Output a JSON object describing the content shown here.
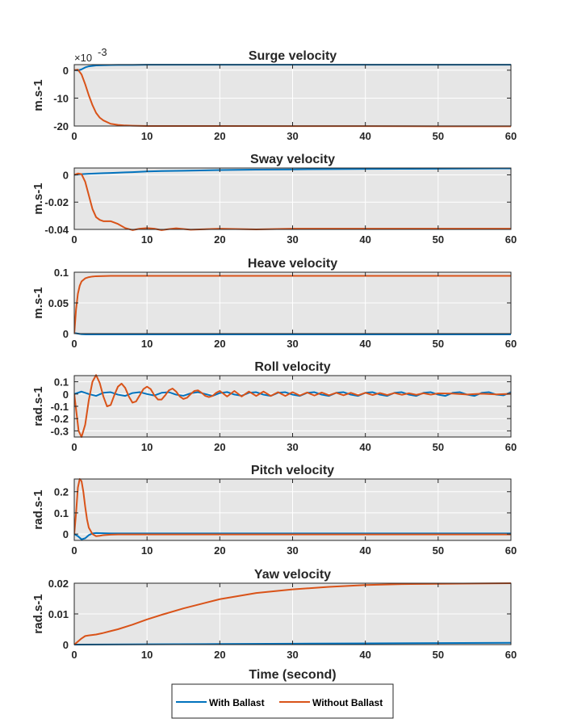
{
  "chart_data": [
    {
      "type": "line",
      "title": "Surge velocity",
      "ylabel": "m.s-1",
      "xlabel": "",
      "xlim": [
        0,
        60
      ],
      "ylim": [
        -20,
        2
      ],
      "xticks": [
        0,
        10,
        20,
        30,
        40,
        50,
        60
      ],
      "xtick_labels": [
        "0",
        "10",
        "20",
        "30",
        "40",
        "50",
        "60"
      ],
      "yticks": [
        -20,
        -10,
        0
      ],
      "ytick_labels": [
        "-20",
        "-10",
        "0"
      ],
      "exponent_label": "×10",
      "exponent_power": "-3",
      "grid": true,
      "series": [
        {
          "name": "With Ballast",
          "color": "#0072BD",
          "x": [
            0,
            0.5,
            1,
            1.5,
            2,
            3,
            4,
            5,
            6,
            8,
            10,
            20,
            30,
            40,
            50,
            60
          ],
          "y": [
            0,
            -0.1,
            0.3,
            1.0,
            1.4,
            1.7,
            1.8,
            1.85,
            1.9,
            1.9,
            1.95,
            1.95,
            1.95,
            1.95,
            1.95,
            1.95
          ]
        },
        {
          "name": "Without Ballast",
          "color": "#D95319",
          "x": [
            0,
            0.5,
            1,
            1.5,
            2,
            2.5,
            3,
            3.5,
            4,
            5,
            6,
            7,
            8,
            10,
            15,
            20,
            30,
            40,
            50,
            60
          ],
          "y": [
            0,
            0.2,
            -1.5,
            -5,
            -9,
            -12.5,
            -15.3,
            -17,
            -18,
            -19.2,
            -19.6,
            -19.8,
            -19.9,
            -20,
            -20,
            -20,
            -20.05,
            -20.05,
            -20.1,
            -20.1
          ]
        }
      ]
    },
    {
      "type": "line",
      "title": "Sway velocity",
      "ylabel": "m.s-1",
      "xlabel": "",
      "xlim": [
        0,
        60
      ],
      "ylim": [
        -0.04,
        0.005
      ],
      "xticks": [
        0,
        10,
        20,
        30,
        40,
        50,
        60
      ],
      "xtick_labels": [
        "0",
        "10",
        "20",
        "30",
        "40",
        "50",
        "60"
      ],
      "yticks": [
        -0.04,
        -0.02,
        0
      ],
      "ytick_labels": [
        "-0.04",
        "-0.02",
        "0"
      ],
      "grid": true,
      "series": [
        {
          "name": "With Ballast",
          "color": "#0072BD",
          "x": [
            0,
            1,
            2,
            3,
            4,
            5,
            6,
            7,
            8,
            10,
            12,
            15,
            20,
            25,
            30,
            35,
            40,
            45,
            50,
            55,
            58,
            60
          ],
          "y": [
            0,
            0.0005,
            0.0008,
            0.001,
            0.0012,
            0.0014,
            0.0016,
            0.0018,
            0.002,
            0.0025,
            0.0028,
            0.003,
            0.0035,
            0.0038,
            0.004,
            0.0042,
            0.0043,
            0.0044,
            0.0045,
            0.0046,
            0.0047,
            0.0047
          ]
        },
        {
          "name": "Without Ballast",
          "color": "#D95319",
          "x": [
            0,
            0.5,
            1,
            1.5,
            2,
            2.5,
            3,
            3.5,
            4,
            5,
            6,
            7,
            8,
            9,
            10,
            11,
            12,
            13,
            14,
            16,
            20,
            25,
            30,
            40,
            50,
            60
          ],
          "y": [
            0,
            0.001,
            0.0005,
            -0.005,
            -0.015,
            -0.025,
            -0.031,
            -0.033,
            -0.034,
            -0.034,
            -0.036,
            -0.039,
            -0.0405,
            -0.0395,
            -0.039,
            -0.0395,
            -0.0405,
            -0.0398,
            -0.0392,
            -0.0402,
            -0.0395,
            -0.04,
            -0.0395,
            -0.0395,
            -0.0395,
            -0.0395
          ]
        }
      ]
    },
    {
      "type": "line",
      "title": "Heave velocity",
      "ylabel": "m.s-1",
      "xlabel": "",
      "xlim": [
        0,
        60
      ],
      "ylim": [
        0,
        0.1
      ],
      "xticks": [
        0,
        10,
        20,
        30,
        40,
        50,
        60
      ],
      "xtick_labels": [
        "0",
        "10",
        "20",
        "30",
        "40",
        "50",
        "60"
      ],
      "yticks": [
        0,
        0.05,
        0.1
      ],
      "ytick_labels": [
        "0",
        "0.05",
        "0.1"
      ],
      "grid": true,
      "series": [
        {
          "name": "With Ballast",
          "color": "#0072BD",
          "x": [
            0,
            1,
            2,
            3,
            5,
            10,
            20,
            30,
            40,
            50,
            60
          ],
          "y": [
            0.001,
            -0.001,
            -0.0015,
            -0.0015,
            -0.0015,
            -0.0015,
            -0.0015,
            -0.0015,
            -0.0015,
            -0.0015,
            -0.0015
          ]
        },
        {
          "name": "Without Ballast",
          "color": "#D95319",
          "x": [
            0,
            0.25,
            0.5,
            0.75,
            1,
            1.5,
            2,
            2.5,
            3,
            4,
            5,
            7,
            10,
            20,
            30,
            40,
            50,
            60
          ],
          "y": [
            0,
            0.04,
            0.065,
            0.078,
            0.085,
            0.09,
            0.092,
            0.093,
            0.0935,
            0.0938,
            0.094,
            0.094,
            0.094,
            0.094,
            0.094,
            0.094,
            0.094,
            0.094
          ]
        }
      ]
    },
    {
      "type": "line",
      "title": "Roll velocity",
      "ylabel": "rad.s-1",
      "xlabel": "",
      "xlim": [
        0,
        60
      ],
      "ylim": [
        -0.35,
        0.15
      ],
      "xticks": [
        0,
        10,
        20,
        30,
        40,
        50,
        60
      ],
      "xtick_labels": [
        "0",
        "10",
        "20",
        "30",
        "40",
        "50",
        "60"
      ],
      "yticks": [
        -0.3,
        -0.2,
        -0.1,
        0,
        0.1
      ],
      "ytick_labels": [
        "-0.3",
        "-0.2",
        "-0.1",
        "0",
        "0.1"
      ],
      "grid": true,
      "series": [
        {
          "name": "With Ballast",
          "color": "#0072BD",
          "x": [
            0,
            1,
            2,
            3,
            4,
            5,
            6,
            7,
            8,
            9,
            10,
            11,
            12,
            13,
            14,
            15,
            16,
            17,
            18,
            19,
            20,
            21,
            22,
            23,
            24,
            25,
            26,
            27,
            28,
            29,
            30,
            31,
            32,
            33,
            34,
            35,
            36,
            37,
            38,
            39,
            40,
            41,
            42,
            43,
            44,
            45,
            46,
            47,
            48,
            49,
            50,
            51,
            52,
            53,
            54,
            55,
            56,
            57,
            58,
            59,
            60
          ],
          "y": [
            0,
            0.02,
            0,
            -0.015,
            0.01,
            0.015,
            -0.005,
            -0.015,
            0.008,
            0.015,
            0,
            -0.012,
            0.01,
            0.015,
            -0.005,
            -0.014,
            0.006,
            0.015,
            0,
            -0.015,
            0.008,
            0.016,
            -0.004,
            -0.014,
            0.01,
            0.015,
            -0.005,
            -0.015,
            0.01,
            0.015,
            -0.005,
            -0.015,
            0.01,
            0.015,
            -0.005,
            -0.015,
            0.01,
            0.015,
            -0.005,
            -0.015,
            0.01,
            0.015,
            -0.005,
            -0.015,
            0.01,
            0.015,
            -0.005,
            -0.015,
            0.01,
            0.015,
            -0.005,
            -0.015,
            0.01,
            0.015,
            -0.005,
            -0.015,
            0.01,
            0.015,
            -0.005,
            -0.01,
            0.015
          ]
        },
        {
          "name": "Without Ballast",
          "color": "#D95319",
          "x": [
            0,
            0.3,
            0.6,
            1,
            1.5,
            2,
            2.5,
            3,
            3.5,
            4,
            4.5,
            5,
            5.5,
            6,
            6.5,
            7,
            7.5,
            8,
            8.5,
            9,
            9.5,
            10,
            10.5,
            11,
            11.5,
            12,
            12.5,
            13,
            13.5,
            14,
            14.5,
            15,
            15.5,
            16,
            16.5,
            17,
            17.5,
            18,
            18.5,
            19,
            19.5,
            20,
            21,
            22,
            23,
            24,
            25,
            26,
            27,
            28,
            29,
            30,
            31,
            32,
            33,
            34,
            35,
            36,
            37,
            38,
            39,
            40,
            41,
            42,
            43,
            44,
            45,
            46,
            47,
            48,
            49,
            50,
            52,
            54,
            56,
            58,
            60
          ],
          "y": [
            0,
            -0.15,
            -0.3,
            -0.35,
            -0.25,
            -0.05,
            0.1,
            0.155,
            0.09,
            -0.02,
            -0.1,
            -0.09,
            -0.01,
            0.06,
            0.085,
            0.05,
            -0.02,
            -0.07,
            -0.06,
            -0.01,
            0.04,
            0.06,
            0.04,
            -0.01,
            -0.045,
            -0.045,
            -0.01,
            0.03,
            0.045,
            0.02,
            -0.02,
            -0.04,
            -0.03,
            0,
            0.025,
            0.03,
            0.01,
            -0.015,
            -0.025,
            -0.015,
            0.01,
            0.025,
            -0.02,
            0.025,
            -0.02,
            0.02,
            -0.015,
            0.02,
            -0.015,
            0.015,
            -0.015,
            0.015,
            -0.012,
            0.012,
            -0.012,
            0.012,
            -0.01,
            0.01,
            -0.01,
            0.01,
            -0.01,
            0.01,
            -0.008,
            0.008,
            -0.008,
            0.008,
            -0.006,
            0.006,
            -0.006,
            0.006,
            -0.005,
            0.005,
            0.004,
            -0.004,
            0.003,
            -0.003,
            0.002
          ]
        }
      ]
    },
    {
      "type": "line",
      "title": "Pitch velocity",
      "ylabel": "rad.s-1",
      "xlabel": "",
      "xlim": [
        0,
        60
      ],
      "ylim": [
        -0.03,
        0.26
      ],
      "xticks": [
        0,
        10,
        20,
        30,
        40,
        50,
        60
      ],
      "xtick_labels": [
        "0",
        "10",
        "20",
        "30",
        "40",
        "50",
        "60"
      ],
      "yticks": [
        0,
        0.1,
        0.2
      ],
      "ytick_labels": [
        "0",
        "0.1",
        "0.2"
      ],
      "grid": true,
      "series": [
        {
          "name": "With Ballast",
          "color": "#0072BD",
          "x": [
            0,
            0.5,
            1,
            1.5,
            2,
            2.5,
            3,
            4,
            5,
            10,
            20,
            30,
            40,
            50,
            60
          ],
          "y": [
            0,
            -0.01,
            -0.025,
            -0.02,
            -0.005,
            0.003,
            0.005,
            0.004,
            0.003,
            0.003,
            0.003,
            0.003,
            0.003,
            0.003,
            0.003
          ]
        },
        {
          "name": "Without Ballast",
          "color": "#D95319",
          "x": [
            0,
            0.25,
            0.5,
            0.75,
            1,
            1.25,
            1.5,
            1.75,
            2,
            2.5,
            3,
            3.5,
            4,
            5,
            6,
            8,
            10,
            20,
            30,
            40,
            50,
            60
          ],
          "y": [
            0,
            0.1,
            0.22,
            0.26,
            0.25,
            0.2,
            0.13,
            0.07,
            0.03,
            0.0,
            -0.01,
            -0.008,
            -0.005,
            -0.003,
            -0.002,
            -0.002,
            -0.002,
            -0.002,
            -0.002,
            -0.002,
            -0.002,
            -0.002
          ]
        }
      ]
    },
    {
      "type": "line",
      "title": "Yaw velocity",
      "ylabel": "rad.s-1",
      "xlabel": "Time (second)",
      "xlim": [
        0,
        60
      ],
      "ylim": [
        0,
        0.02
      ],
      "xticks": [
        0,
        10,
        20,
        30,
        40,
        50,
        60
      ],
      "xtick_labels": [
        "0",
        "10",
        "20",
        "30",
        "40",
        "50",
        "60"
      ],
      "yticks": [
        0,
        0.01,
        0.02
      ],
      "ytick_labels": [
        "0",
        "0.01",
        "0.02"
      ],
      "grid": true,
      "series": [
        {
          "name": "With Ballast",
          "color": "#0072BD",
          "x": [
            0,
            10,
            20,
            30,
            40,
            50,
            60
          ],
          "y": [
            0,
            0.0001,
            0.0002,
            0.0003,
            0.0004,
            0.0005,
            0.0006
          ]
        },
        {
          "name": "Without Ballast",
          "color": "#D95319",
          "x": [
            0,
            0.5,
            1,
            1.5,
            2,
            3,
            4,
            5,
            6,
            8,
            10,
            12,
            15,
            20,
            25,
            30,
            35,
            40,
            45,
            50,
            55,
            60
          ],
          "y": [
            0,
            0.001,
            0.002,
            0.0028,
            0.003,
            0.0033,
            0.0038,
            0.0044,
            0.005,
            0.0065,
            0.0082,
            0.0097,
            0.0118,
            0.0148,
            0.0168,
            0.018,
            0.0188,
            0.0194,
            0.0197,
            0.0198,
            0.0199,
            0.02
          ]
        }
      ]
    }
  ],
  "legend": {
    "placement": "bottom",
    "entries": [
      {
        "label": "With Ballast",
        "color": "#0072BD"
      },
      {
        "label": "Without Ballast",
        "color": "#D95319"
      }
    ]
  }
}
